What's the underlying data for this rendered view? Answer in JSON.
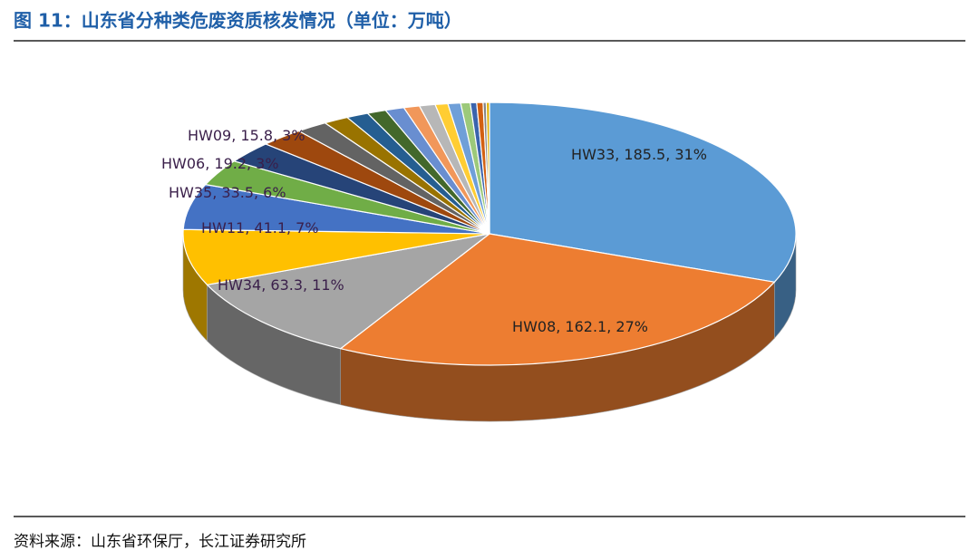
{
  "chart_data": {
    "type": "pie3d",
    "title": "图 11：山东省分种类危废资质核发情况（单位：万吨）",
    "source": "资料来源：山东省环保厅，长江证券研究所",
    "categories": [
      "HW33",
      "HW08",
      "HW34",
      "HW11",
      "HW35",
      "HW06",
      "HW09",
      null,
      null,
      null,
      null,
      null,
      null,
      null,
      null,
      null,
      null,
      null,
      null,
      null,
      null,
      null
    ],
    "values": [
      185.5,
      162.1,
      63.3,
      41.1,
      33.5,
      19.2,
      15.8,
      14,
      10,
      8,
      7,
      6,
      6,
      5,
      5,
      4,
      4,
      3,
      2,
      2,
      1,
      1
    ],
    "value_labels": [
      "HW33, 185.5, 31%",
      "HW08, 162.1, 27%",
      "HW34, 63.3, 11%",
      "HW11, 41.1, 7%",
      "HW35, 33.5, 6%",
      "HW06, 19.2, 3%",
      "HW09, 15.8, 3%",
      null,
      null,
      null,
      null,
      null,
      null,
      null,
      null,
      null,
      null,
      null,
      null,
      null,
      null,
      null
    ],
    "colors": [
      "#5b9bd5",
      "#ed7d31",
      "#a5a5a5",
      "#ffc000",
      "#4472c4",
      "#70ad47",
      "#264478",
      "#9e480e",
      "#636363",
      "#997300",
      "#255e91",
      "#43682b",
      "#698ed0",
      "#f1975a",
      "#b7b7b7",
      "#ffcd33",
      "#6f9fd8",
      "#9cc97a",
      "#3b64ad",
      "#d26012",
      "#848484",
      "#e0b000"
    ]
  }
}
